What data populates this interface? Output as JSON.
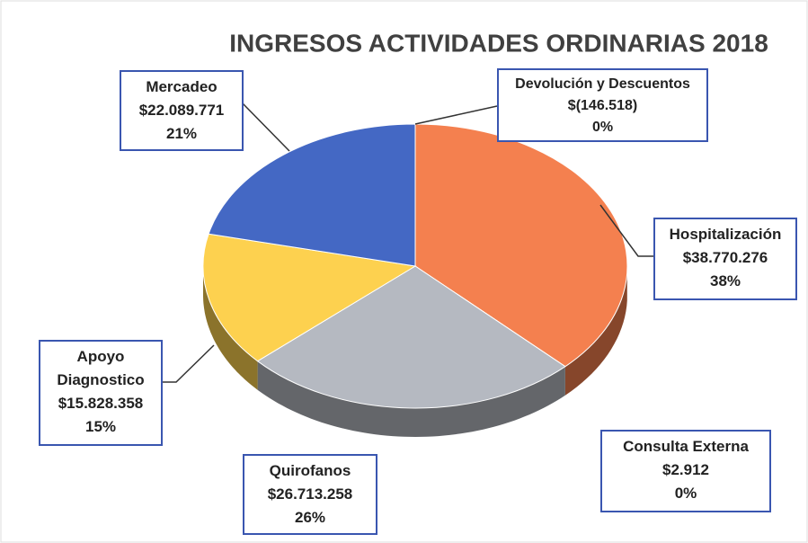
{
  "chart_data": {
    "type": "pie",
    "title": "INGRESOS ACTIVIDADES ORDINARIAS 2018",
    "categories": [
      "Devolución y Descuentos",
      "Hospitalización",
      "Consulta Externa",
      "Quirofanos",
      "Apoyo Diagnostico",
      "Mercadeo"
    ],
    "values": [
      -146518,
      38770276,
      2912,
      26713258,
      15828358,
      22089771
    ],
    "value_labels": [
      "$(146.518)",
      "$38.770.276",
      "$2.912",
      "$26.713.258",
      "$15.828.358",
      "$22.089.771"
    ],
    "percents": [
      0,
      38,
      0,
      26,
      15,
      21
    ],
    "percent_labels": [
      "0%",
      "38%",
      "0%",
      "26%",
      "15%",
      "21%"
    ],
    "colors": [
      "#a9c36b",
      "#f4804f",
      "#8fb2d6",
      "#b5b9c1",
      "#fdd14f",
      "#4468c4"
    ]
  }
}
